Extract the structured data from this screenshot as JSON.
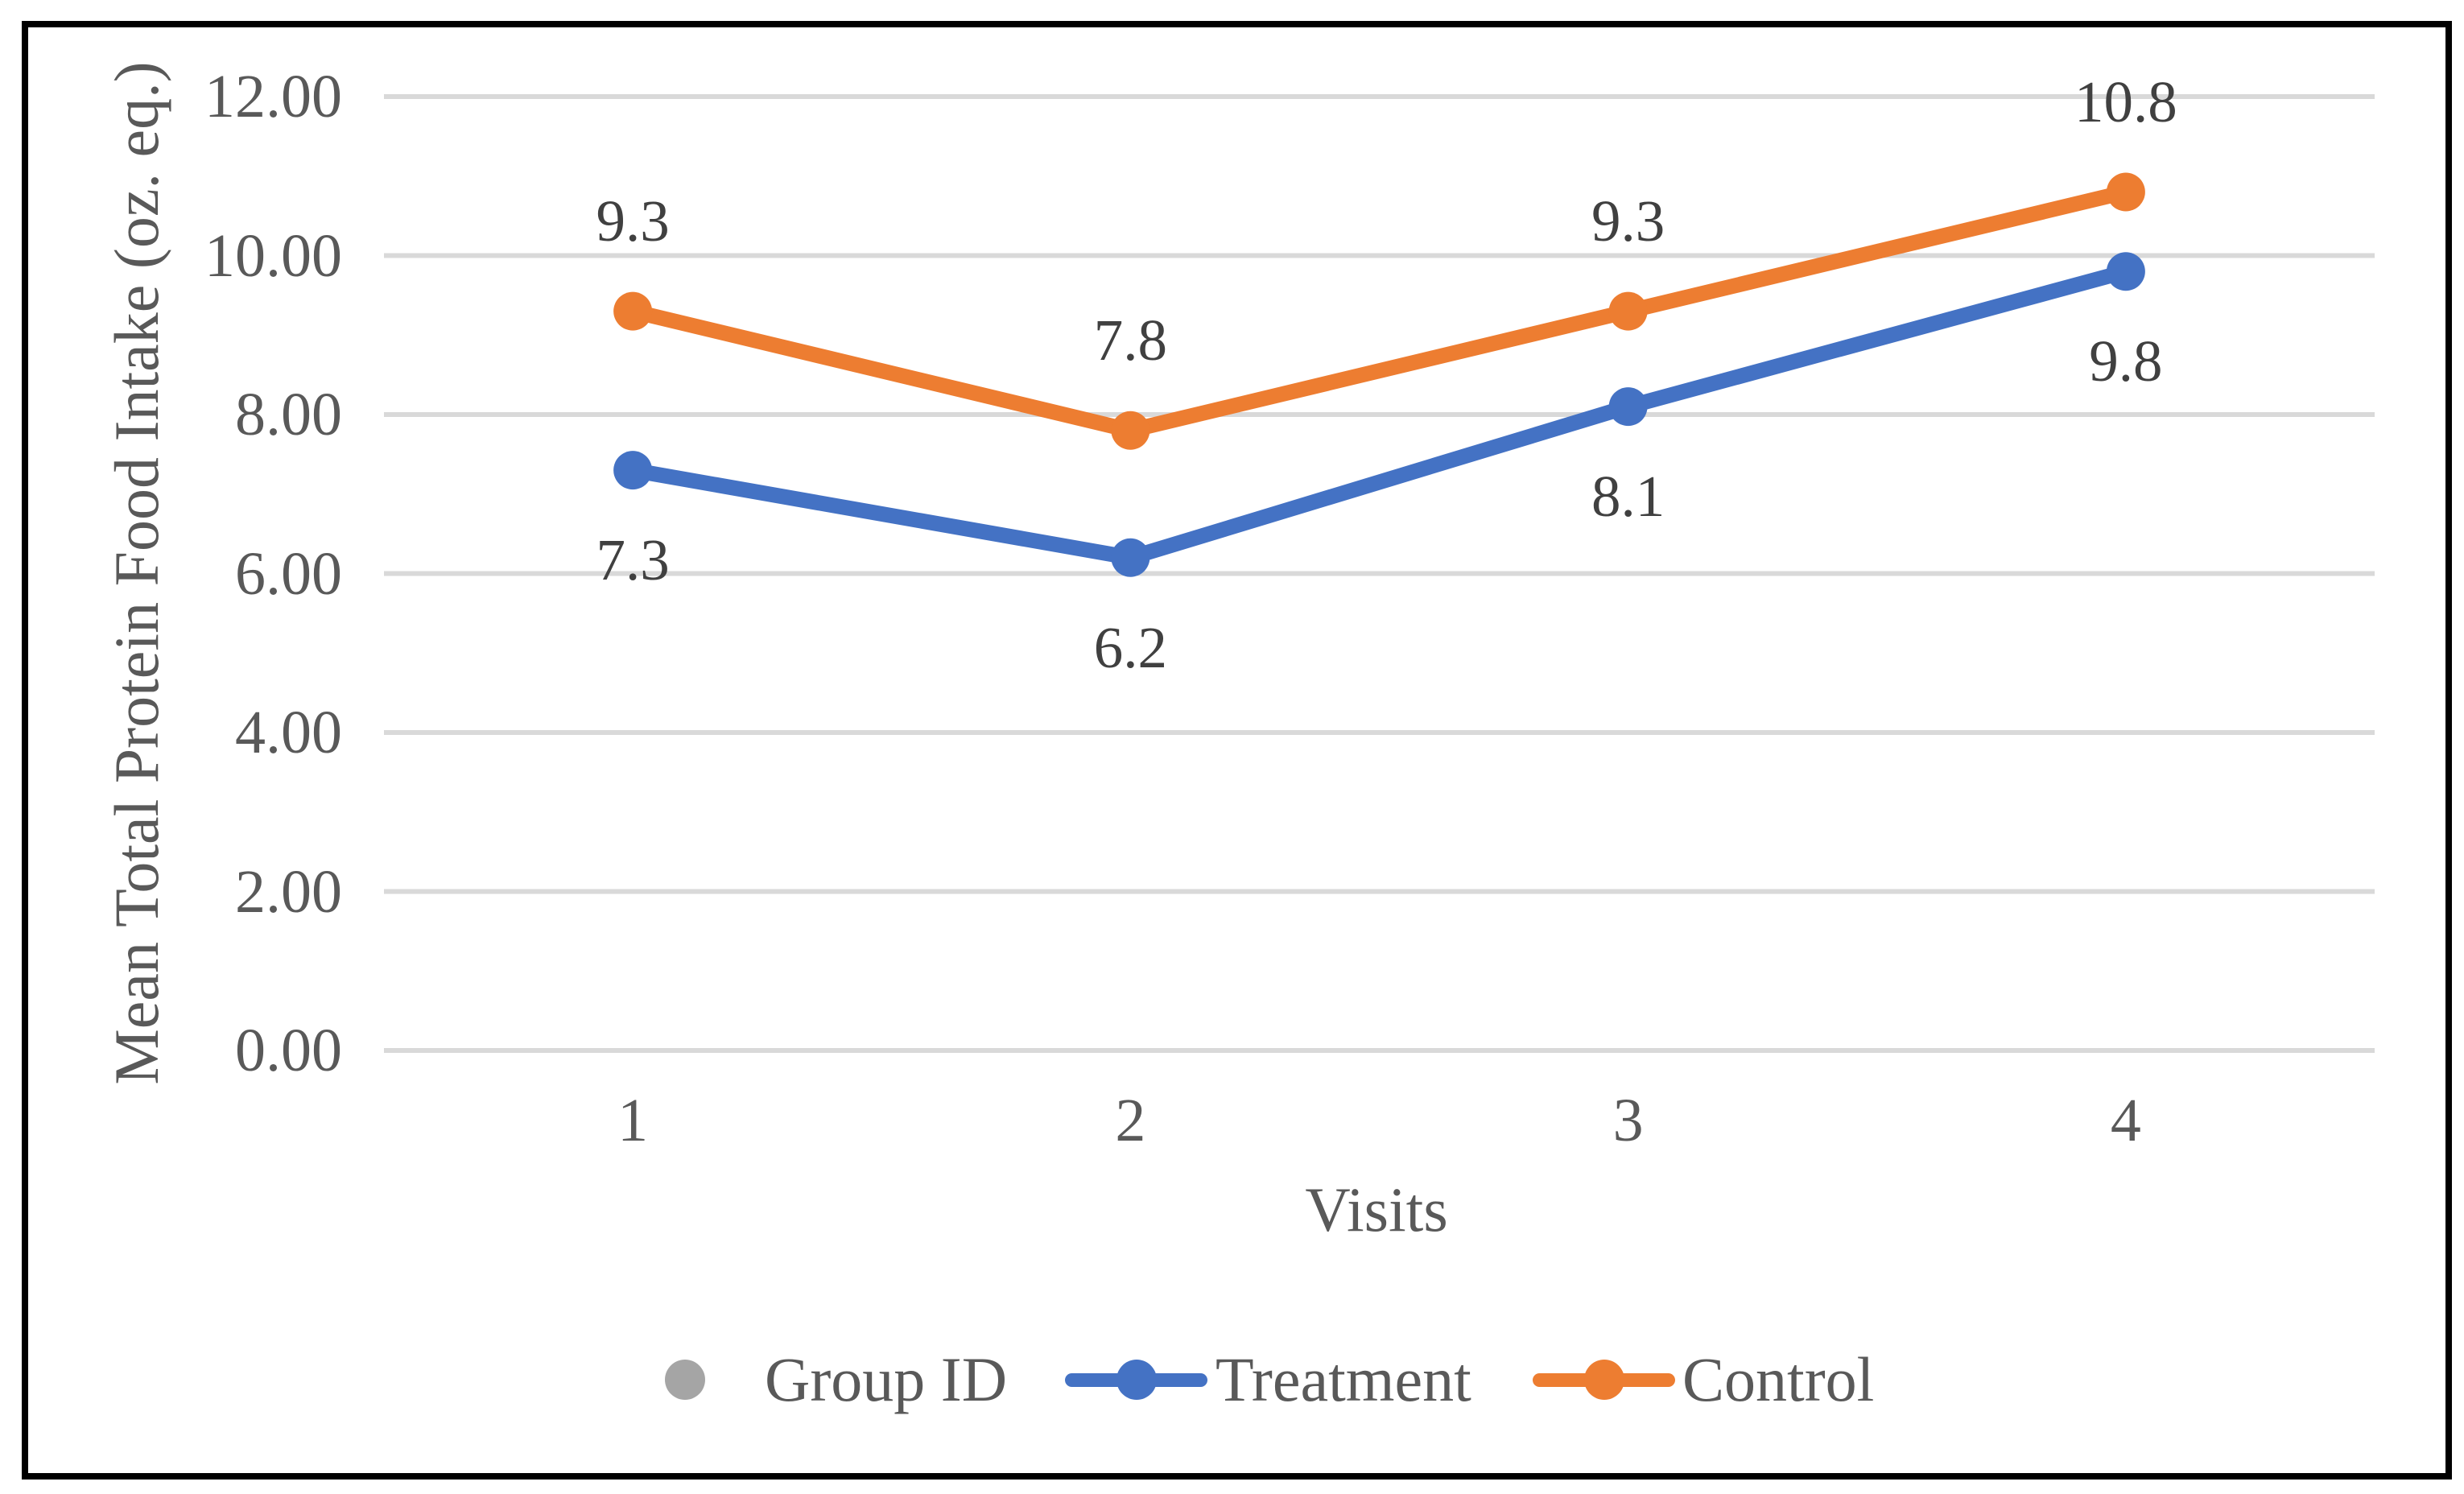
{
  "chart_data": {
    "type": "line",
    "title": "",
    "xlabel": "Visits",
    "ylabel": "Mean Total Protein Food Intake (oz. eq.)",
    "ylim": [
      0,
      12
    ],
    "ytick_step": 2,
    "ytick_labels": [
      "0.00",
      "2.00",
      "4.00",
      "6.00",
      "8.00",
      "10.00",
      "12.00"
    ],
    "categories": [
      "1",
      "2",
      "3",
      "4"
    ],
    "grid": true,
    "legend_position": "bottom",
    "series": [
      {
        "name": "Group ID",
        "color": "#A5A5A5",
        "marker": "dot-only",
        "values": [],
        "data_labels": []
      },
      {
        "name": "Treatment",
        "color": "#4472C4",
        "marker": "line-dot",
        "values": [
          7.3,
          6.2,
          8.1,
          9.8
        ],
        "data_labels": [
          "7.3",
          "6.2",
          "8.1",
          "9.8"
        ],
        "label_position": "below"
      },
      {
        "name": "Control",
        "color": "#ED7D31",
        "marker": "line-dot",
        "values": [
          9.3,
          7.8,
          9.3,
          10.8
        ],
        "data_labels": [
          "9.3",
          "7.8",
          "9.3",
          "10.8"
        ],
        "label_position": "above"
      }
    ]
  },
  "styles": {
    "background": "#FFFFFF",
    "border_color": "#000000",
    "grid_color": "#D9D9D9",
    "axis_text_color": "#595959",
    "data_label_color": "#404040"
  }
}
